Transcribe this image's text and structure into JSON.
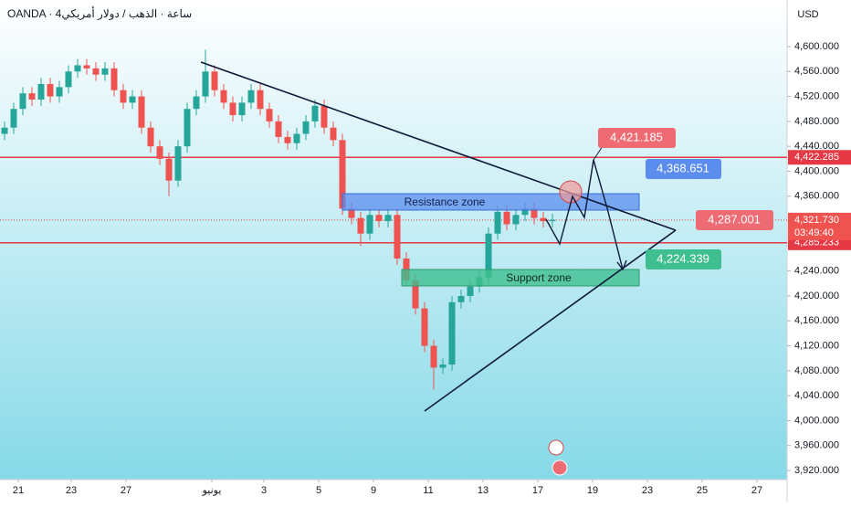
{
  "chart_data": {
    "type": "candlestick",
    "header": "OANDA · 4ساعة · الذهب / دولار أمريكي",
    "currency": "USD",
    "up_color": "#26a69a",
    "down_color": "#ef5350",
    "x": [
      0,
      1,
      2,
      3,
      4,
      5,
      6,
      7,
      8,
      9,
      10,
      11,
      12,
      13,
      14,
      15,
      16,
      17,
      18,
      19,
      20,
      21,
      22,
      23,
      24,
      25,
      26,
      27,
      28,
      29,
      30,
      31,
      32,
      33,
      34,
      35,
      36,
      37,
      38,
      39,
      40,
      41,
      42,
      43,
      44,
      45,
      46,
      47,
      48,
      49,
      50,
      51,
      52,
      53,
      54,
      55,
      56,
      57,
      58,
      59,
      60
    ],
    "open": [
      4460,
      4470,
      4500,
      4525,
      4515,
      4540,
      4520,
      4535,
      4560,
      4570,
      4565,
      4555,
      4565,
      4530,
      4510,
      4520,
      4470,
      4440,
      4420,
      4385,
      4440,
      4500,
      4520,
      4560,
      4530,
      4510,
      4490,
      4510,
      4530,
      4500,
      4480,
      4455,
      4445,
      4460,
      4480,
      4505,
      4470,
      4450,
      4340,
      4325,
      4300,
      4330,
      4320,
      4330,
      4260,
      4225,
      4180,
      4120,
      4085,
      4090,
      4190,
      4200,
      4215,
      4230,
      4300,
      4335,
      4315,
      4330,
      4340,
      4325,
      4320
    ],
    "high": [
      4480,
      4510,
      4535,
      4535,
      4550,
      4550,
      4545,
      4570,
      4580,
      4580,
      4575,
      4575,
      4575,
      4540,
      4530,
      4530,
      4480,
      4450,
      4430,
      4450,
      4510,
      4530,
      4595,
      4570,
      4540,
      4520,
      4520,
      4540,
      4540,
      4510,
      4490,
      4465,
      4470,
      4490,
      4515,
      4515,
      4480,
      4460,
      4350,
      4335,
      4340,
      4340,
      4340,
      4340,
      4270,
      4235,
      4190,
      4130,
      4100,
      4200,
      4210,
      4225,
      4240,
      4310,
      4345,
      4345,
      4340,
      4350,
      4350,
      4335,
      4332
    ],
    "low": [
      4450,
      4460,
      4490,
      4505,
      4505,
      4510,
      4510,
      4525,
      4550,
      4555,
      4545,
      4545,
      4520,
      4500,
      4500,
      4460,
      4430,
      4410,
      4360,
      4375,
      4430,
      4490,
      4510,
      4520,
      4500,
      4480,
      4480,
      4500,
      4490,
      4470,
      4445,
      4435,
      4435,
      4450,
      4470,
      4460,
      4440,
      4330,
      4315,
      4280,
      4290,
      4310,
      4310,
      4250,
      4215,
      4170,
      4110,
      4050,
      4075,
      4080,
      4180,
      4190,
      4205,
      4220,
      4290,
      4305,
      4305,
      4320,
      4315,
      4310,
      4310
    ],
    "close": [
      4470,
      4500,
      4525,
      4515,
      4540,
      4520,
      4535,
      4560,
      4570,
      4565,
      4555,
      4565,
      4530,
      4510,
      4520,
      4470,
      4440,
      4420,
      4385,
      4440,
      4500,
      4520,
      4560,
      4530,
      4510,
      4490,
      4510,
      4530,
      4500,
      4480,
      4455,
      4445,
      4460,
      4480,
      4505,
      4470,
      4450,
      4340,
      4325,
      4300,
      4330,
      4320,
      4330,
      4260,
      4225,
      4180,
      4120,
      4085,
      4090,
      4190,
      4200,
      4215,
      4230,
      4300,
      4335,
      4315,
      4330,
      4340,
      4325,
      4320,
      4322
    ],
    "xlim": [
      -0.5,
      85.7
    ],
    "xticks": [
      {
        "value": 1.5,
        "label": "21"
      },
      {
        "value": 7.3,
        "label": "23"
      },
      {
        "value": 13.3,
        "label": "27"
      },
      {
        "value": 22.7,
        "label": "يونيو"
      },
      {
        "value": 28.4,
        "label": "3"
      },
      {
        "value": 34.4,
        "label": "5"
      },
      {
        "value": 40.4,
        "label": "9"
      },
      {
        "value": 46.4,
        "label": "11"
      },
      {
        "value": 52.4,
        "label": "13"
      },
      {
        "value": 58.4,
        "label": "17"
      },
      {
        "value": 64.4,
        "label": "19"
      },
      {
        "value": 70.4,
        "label": "23"
      },
      {
        "value": 76.4,
        "label": "25"
      },
      {
        "value": 82.4,
        "label": "27"
      }
    ],
    "ylim": [
      3905.4,
      4674.7
    ],
    "yticks": [
      {
        "value": 3920,
        "label": "3,920.000"
      },
      {
        "value": 3960,
        "label": "3,960.000"
      },
      {
        "value": 4000,
        "label": "4,000.000"
      },
      {
        "value": 4040,
        "label": "4,040.000"
      },
      {
        "value": 4080,
        "label": "4,080.000"
      },
      {
        "value": 4120,
        "label": "4,120.000"
      },
      {
        "value": 4160,
        "label": "4,160.000"
      },
      {
        "value": 4200,
        "label": "4,200.000"
      },
      {
        "value": 4240,
        "label": "4,240.000"
      },
      {
        "value": 4280,
        "label": "4,280.000"
      },
      {
        "value": 4320,
        "label": "4,320.000"
      },
      {
        "value": 4360,
        "label": "4,360.000"
      },
      {
        "value": 4400,
        "label": "4,400.000"
      },
      {
        "value": 4440,
        "label": "4,440.000"
      },
      {
        "value": 4480,
        "label": "4,480.000"
      },
      {
        "value": 4520,
        "label": "4,520.000"
      },
      {
        "value": 4560,
        "label": "4,560.000"
      },
      {
        "value": 4600,
        "label": "4,600.000"
      }
    ],
    "hlines": [
      {
        "value": 4422.285,
        "label": "4,422.285"
      },
      {
        "value": 4285.233,
        "label": "4,285.233"
      }
    ],
    "current_price": {
      "value": 4321.73,
      "label": "4,321.730",
      "countdown": "03:49:40"
    },
    "zones": [
      "Resistance zone",
      "Support zone"
    ],
    "callouts": [
      "4,421.185",
      "4,368.651",
      "4,287.001",
      "4,224.339"
    ]
  }
}
